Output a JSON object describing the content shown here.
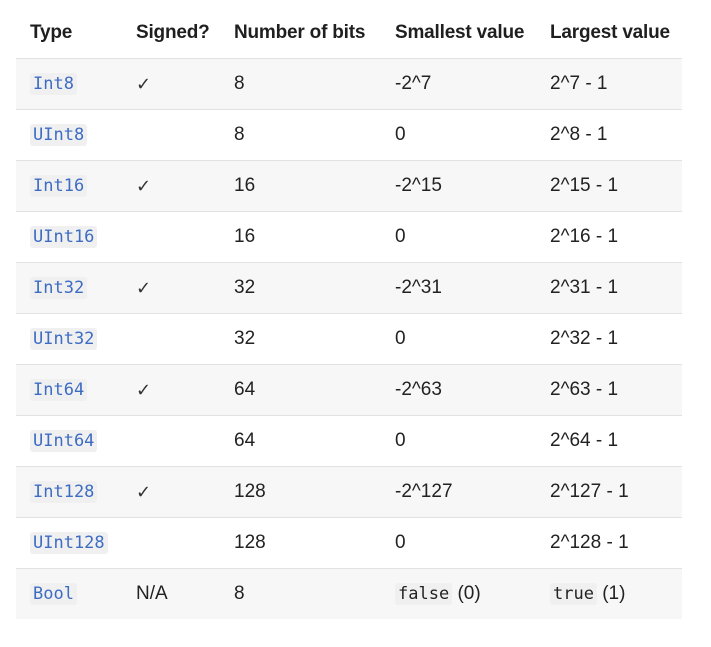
{
  "table": {
    "headers": [
      "Type",
      "Signed?",
      "Number of bits",
      "Smallest value",
      "Largest value"
    ],
    "rows": [
      {
        "type": "Int8",
        "signed": "✓",
        "bits": "8",
        "smallest": "-2^7",
        "largest": "2^7 - 1"
      },
      {
        "type": "UInt8",
        "signed": "",
        "bits": "8",
        "smallest": "0",
        "largest": "2^8 - 1"
      },
      {
        "type": "Int16",
        "signed": "✓",
        "bits": "16",
        "smallest": "-2^15",
        "largest": "2^15 - 1"
      },
      {
        "type": "UInt16",
        "signed": "",
        "bits": "16",
        "smallest": "0",
        "largest": "2^16 - 1"
      },
      {
        "type": "Int32",
        "signed": "✓",
        "bits": "32",
        "smallest": "-2^31",
        "largest": "2^31 - 1"
      },
      {
        "type": "UInt32",
        "signed": "",
        "bits": "32",
        "smallest": "0",
        "largest": "2^32 - 1"
      },
      {
        "type": "Int64",
        "signed": "✓",
        "bits": "64",
        "smallest": "-2^63",
        "largest": "2^63 - 1"
      },
      {
        "type": "UInt64",
        "signed": "",
        "bits": "64",
        "smallest": "0",
        "largest": "2^64 - 1"
      },
      {
        "type": "Int128",
        "signed": "✓",
        "bits": "128",
        "smallest": "-2^127",
        "largest": "2^127 - 1"
      },
      {
        "type": "UInt128",
        "signed": "",
        "bits": "128",
        "smallest": "0",
        "largest": "2^128 - 1"
      },
      {
        "type": "Bool",
        "signed": "N/A",
        "bits": "8",
        "smallest_code": "false",
        "smallest_suffix": " (0)",
        "largest_code": "true",
        "largest_suffix": " (1)"
      }
    ]
  },
  "colors": {
    "type_code": "#3d6cc4",
    "stripe": "#f7f7f7",
    "border": "#e2e2e2"
  }
}
